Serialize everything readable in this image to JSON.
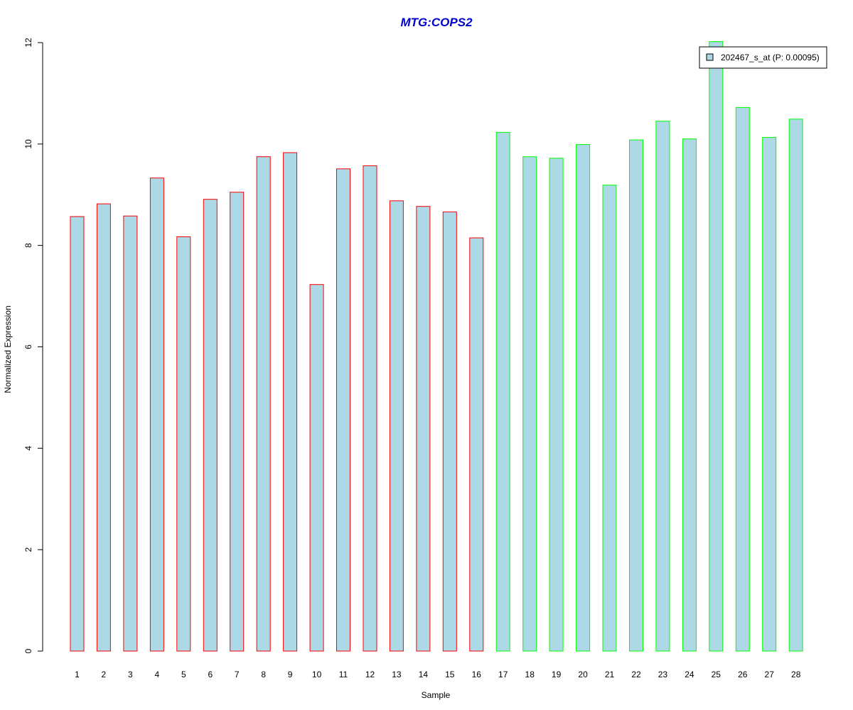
{
  "chart_data": {
    "type": "bar",
    "title": "MTG:COPS2",
    "xlabel": "Sample",
    "ylabel": "Normalized Expression",
    "ylim": [
      0,
      12
    ],
    "yticks": [
      0,
      2,
      4,
      6,
      8,
      10,
      12
    ],
    "categories": [
      "1",
      "2",
      "3",
      "4",
      "5",
      "6",
      "7",
      "8",
      "9",
      "10",
      "11",
      "12",
      "13",
      "14",
      "15",
      "16",
      "17",
      "18",
      "19",
      "20",
      "21",
      "22",
      "23",
      "24",
      "25",
      "26",
      "27",
      "28"
    ],
    "values": [
      8.57,
      8.82,
      8.58,
      9.33,
      8.17,
      8.91,
      9.05,
      9.75,
      9.83,
      7.23,
      9.51,
      9.57,
      8.88,
      8.77,
      8.66,
      8.15,
      10.23,
      9.75,
      9.72,
      9.99,
      9.19,
      10.08,
      10.45,
      10.1,
      12.02,
      10.72,
      10.13,
      10.49
    ],
    "bar_fill": "#add8e6",
    "group_border_colors": [
      "#ff0000",
      "#ff0000",
      "#ff0000",
      "#ff0000",
      "#ff0000",
      "#ff0000",
      "#ff0000",
      "#ff0000",
      "#ff0000",
      "#ff0000",
      "#ff0000",
      "#ff0000",
      "#ff0000",
      "#ff0000",
      "#ff0000",
      "#ff0000",
      "#00ff00",
      "#00ff00",
      "#00ff00",
      "#00ff00",
      "#00ff00",
      "#00ff00",
      "#00ff00",
      "#00ff00",
      "#00ff00",
      "#00ff00",
      "#00ff00",
      "#00ff00"
    ],
    "title_color": "#0000cd",
    "legend": {
      "label": "202467_s_at (P: 0.00095)",
      "placement": "top-right"
    },
    "grid": false
  }
}
